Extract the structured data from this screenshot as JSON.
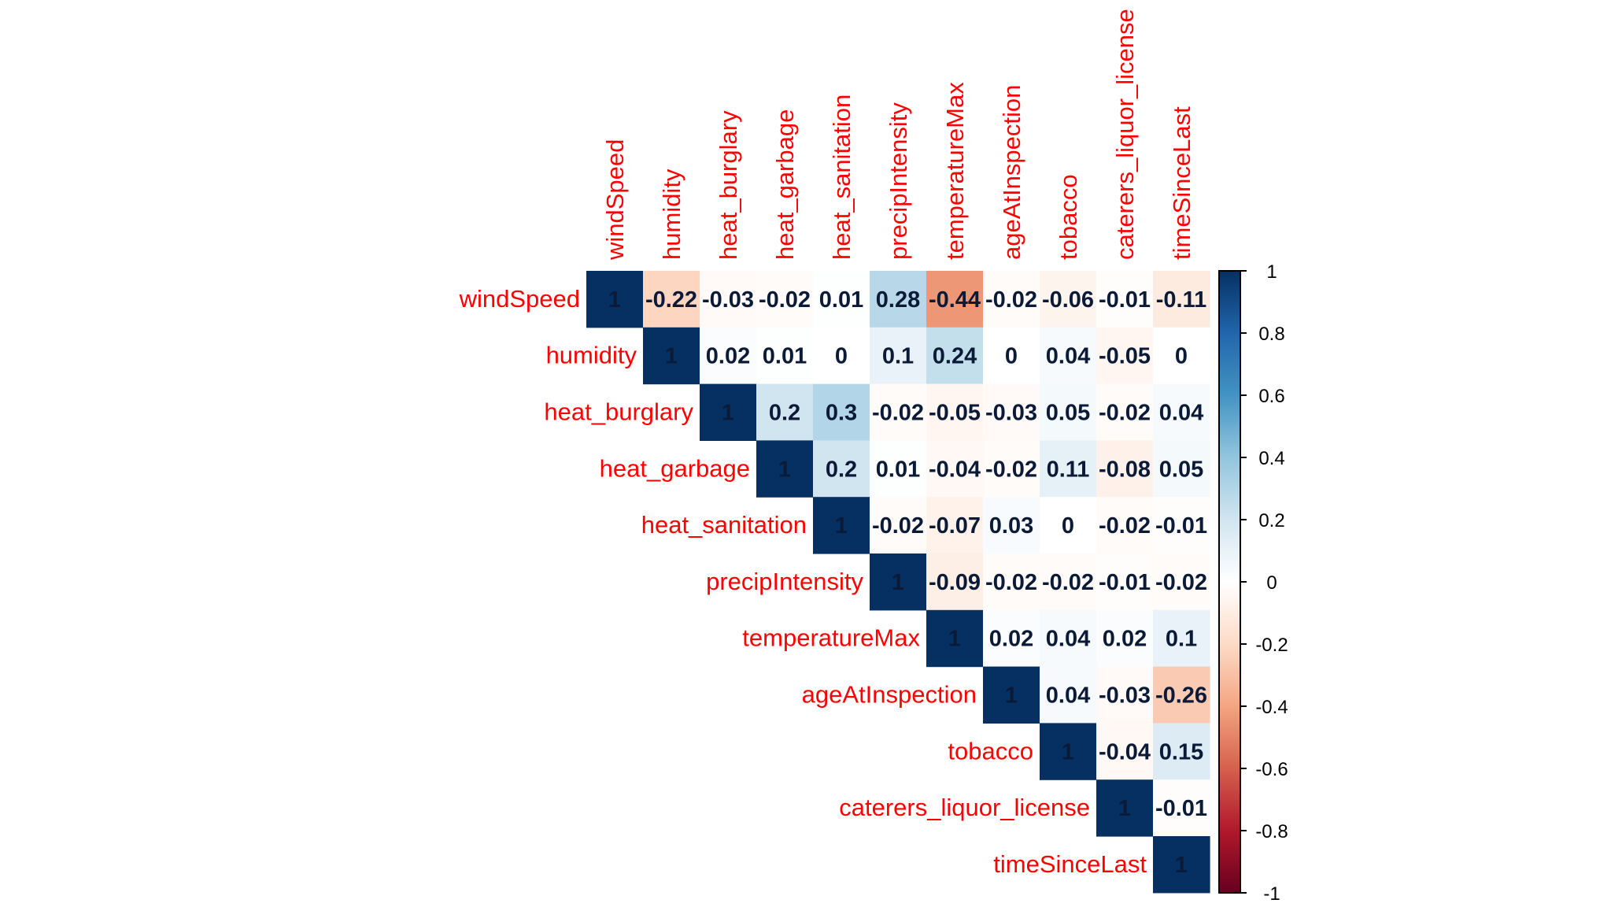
{
  "chart_data": {
    "type": "heatmap",
    "subtype": "correlation-matrix-upper",
    "variables": [
      "windSpeed",
      "humidity",
      "heat_burglary",
      "heat_garbage",
      "heat_sanitation",
      "precipIntensity",
      "temperatureMax",
      "ageAtInspection",
      "tobacco",
      "caterers_liquor_license",
      "timeSinceLast"
    ],
    "matrix": [
      [
        1,
        -0.22,
        -0.03,
        -0.02,
        0.01,
        0.28,
        -0.44,
        -0.02,
        -0.06,
        -0.01,
        -0.11
      ],
      [
        null,
        1,
        0.02,
        0.01,
        0,
        0.1,
        0.24,
        0,
        0.04,
        -0.05,
        0
      ],
      [
        null,
        null,
        1,
        0.2,
        0.3,
        -0.02,
        -0.05,
        -0.03,
        0.05,
        -0.02,
        0.04
      ],
      [
        null,
        null,
        null,
        1,
        0.2,
        0.01,
        -0.04,
        -0.02,
        0.11,
        -0.08,
        0.05
      ],
      [
        null,
        null,
        null,
        null,
        1,
        -0.02,
        -0.07,
        0.03,
        0,
        -0.02,
        -0.01
      ],
      [
        null,
        null,
        null,
        null,
        null,
        1,
        -0.09,
        -0.02,
        -0.02,
        -0.01,
        -0.02
      ],
      [
        null,
        null,
        null,
        null,
        null,
        null,
        1,
        0.02,
        0.04,
        0.02,
        0.1
      ],
      [
        null,
        null,
        null,
        null,
        null,
        null,
        null,
        1,
        0.04,
        -0.03,
        -0.26
      ],
      [
        null,
        null,
        null,
        null,
        null,
        null,
        null,
        null,
        1,
        -0.04,
        0.15
      ],
      [
        null,
        null,
        null,
        null,
        null,
        null,
        null,
        null,
        null,
        1,
        -0.01
      ],
      [
        null,
        null,
        null,
        null,
        null,
        null,
        null,
        null,
        null,
        null,
        1
      ]
    ],
    "value_range": [
      -1,
      1
    ],
    "colorbar": {
      "ticks": [
        "1",
        "0.8",
        "0.6",
        "0.4",
        "0.2",
        "0",
        "-0.2",
        "-0.4",
        "-0.6",
        "-0.8",
        "-1"
      ],
      "palette": [
        "#67001F",
        "#B2182B",
        "#D6604D",
        "#F4A582",
        "#FDDBC7",
        "#FFFFFF",
        "#D1E5F0",
        "#92C5DE",
        "#4393C3",
        "#2166AC",
        "#053061"
      ],
      "placement": "right"
    },
    "label_color": "#FF0000",
    "value_text_color": "#0B1A36"
  }
}
